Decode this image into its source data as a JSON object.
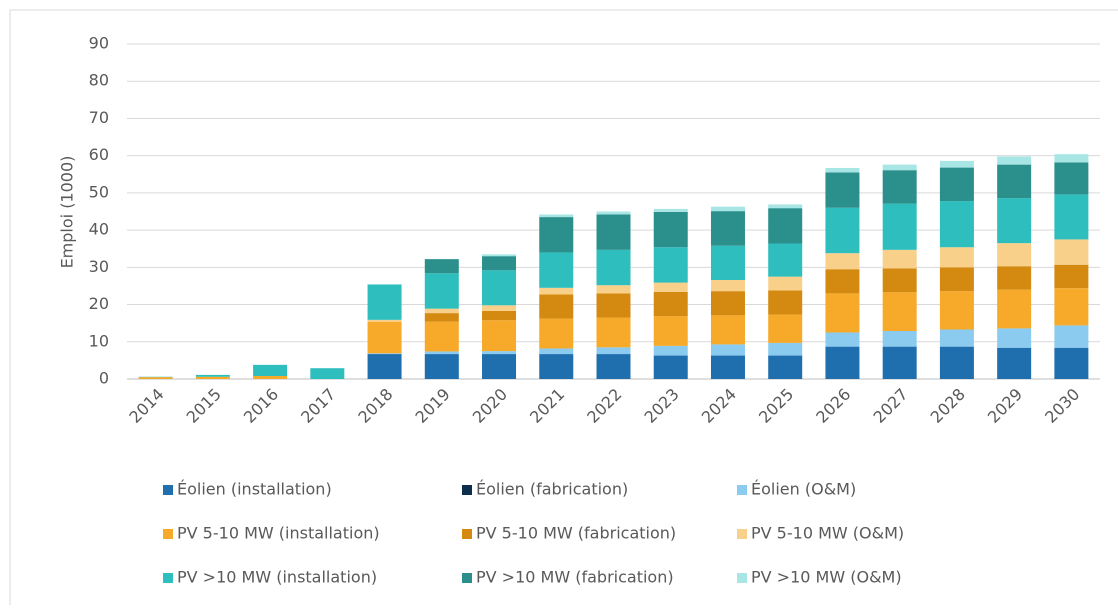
{
  "chart_data": {
    "type": "bar",
    "stacked": true,
    "ylabel": "Emploi (1000)",
    "categories": [
      "2014",
      "2015",
      "2016",
      "2017",
      "2018",
      "2019",
      "2020",
      "2021",
      "2022",
      "2023",
      "2024",
      "2025",
      "2026",
      "2027",
      "2028",
      "2029",
      "2030"
    ],
    "ylim": [
      0,
      90
    ],
    "yticks": [
      0,
      10,
      20,
      30,
      40,
      50,
      60,
      70,
      80,
      90
    ],
    "grid": true,
    "legend": "bottom",
    "series": [
      {
        "name": "Éolien (installation)",
        "color": "#1f6fae",
        "values": [
          0,
          0,
          0,
          0,
          6.7,
          6.7,
          6.7,
          6.7,
          6.7,
          6.3,
          6.3,
          6.3,
          8.7,
          8.7,
          8.7,
          8.4,
          8.4
        ]
      },
      {
        "name": "Éolien (fabrication)",
        "color": "#0d2e4d",
        "values": [
          0,
          0,
          0,
          0,
          0,
          0,
          0,
          0,
          0,
          0,
          0,
          0,
          0,
          0,
          0,
          0,
          0
        ]
      },
      {
        "name": "Éolien (O&M)",
        "color": "#8ccbf0",
        "values": [
          0,
          0,
          0,
          0,
          0.2,
          0.7,
          0.8,
          1.5,
          1.8,
          2.6,
          3,
          3.4,
          3.8,
          4.2,
          4.6,
          5.2,
          6
        ]
      },
      {
        "name": "PV 5-10 MW (installation)",
        "color": "#f7a929",
        "values": [
          0.5,
          0.6,
          0.8,
          0,
          8.5,
          8,
          8.3,
          8,
          8,
          8,
          7.8,
          7.6,
          10.5,
          10.4,
          10.3,
          10.4,
          10
        ]
      },
      {
        "name": "PV 5-10 MW (fabrication)",
        "color": "#d48a10",
        "values": [
          0,
          0,
          0,
          0,
          0,
          2.3,
          2.5,
          6.5,
          6.5,
          6.5,
          6.5,
          6.5,
          6.5,
          6.4,
          6.4,
          6.3,
          6.3
        ]
      },
      {
        "name": "PV 5-10 MW (O&M)",
        "color": "#f9d08a",
        "values": [
          0,
          0,
          0,
          0,
          0.5,
          1.2,
          1.5,
          1.8,
          2.2,
          2.5,
          3,
          3.7,
          4.3,
          5,
          5.4,
          6.2,
          6.8
        ]
      },
      {
        "name": "PV >10 MW (installation)",
        "color": "#2dbebd",
        "values": [
          0.1,
          0.5,
          3,
          2.9,
          9.5,
          9.5,
          9.4,
          9.5,
          9.5,
          9.5,
          9.2,
          8.9,
          12.2,
          12.4,
          12.4,
          12.1,
          12.1
        ]
      },
      {
        "name": "PV >10 MW (fabrication)",
        "color": "#2b8f8c",
        "values": [
          0,
          0,
          0,
          0,
          0,
          3.8,
          3.8,
          9.5,
          9.5,
          9.5,
          9.3,
          9.5,
          9.5,
          9,
          9,
          9,
          8.6
        ]
      },
      {
        "name": "PV >10 MW (O&M)",
        "color": "#a8e6e6",
        "values": [
          0,
          0,
          0,
          0,
          0,
          0,
          0.5,
          0.7,
          0.8,
          0.8,
          1.2,
          1,
          1.2,
          1.5,
          1.8,
          2.2,
          2.2
        ]
      }
    ]
  }
}
